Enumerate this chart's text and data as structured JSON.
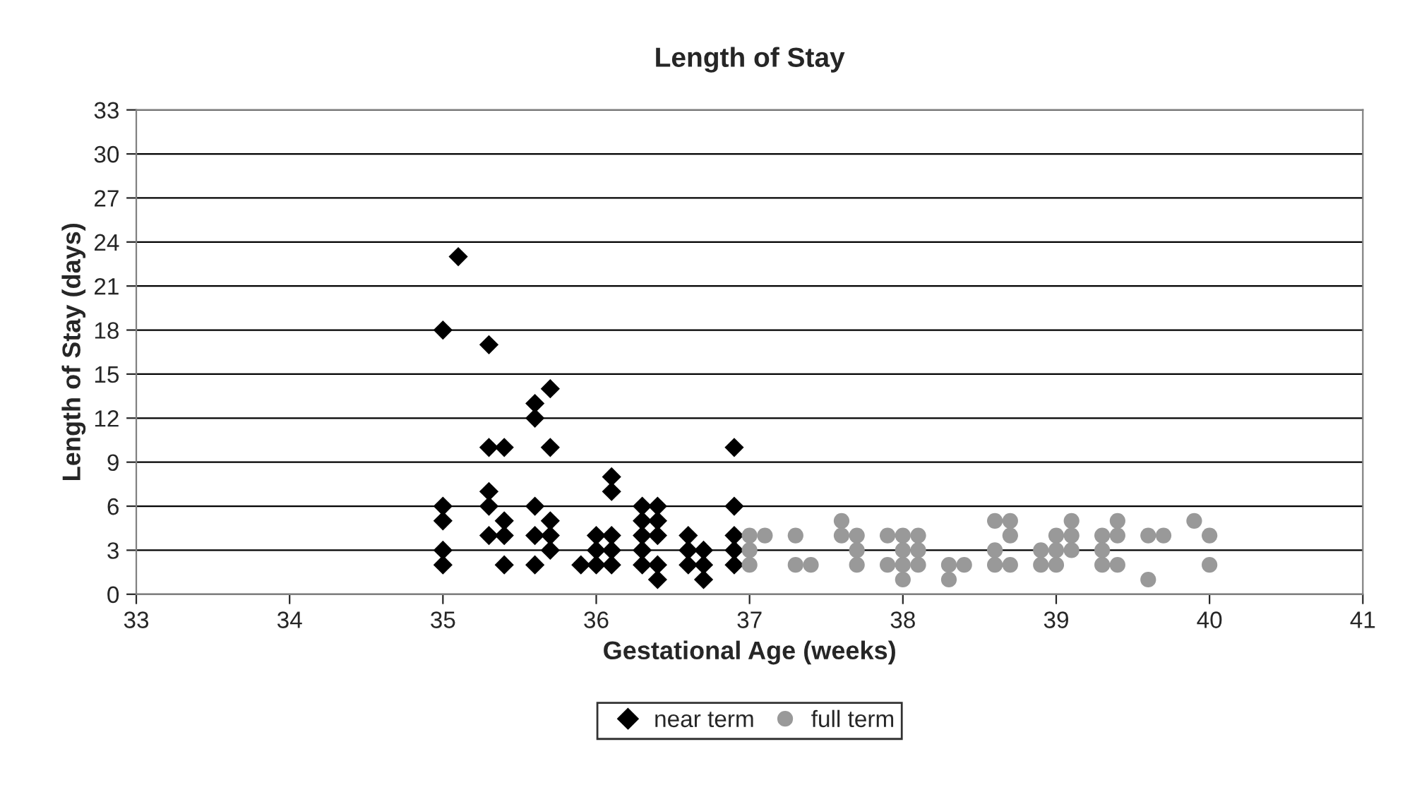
{
  "chart_data": {
    "type": "scatter",
    "title": "Length of Stay",
    "xlabel": "Gestational Age (weeks)",
    "ylabel": "Length of Stay (days)",
    "xlim": [
      33,
      41
    ],
    "xticks": [
      33,
      34,
      35,
      36,
      37,
      38,
      39,
      40,
      41
    ],
    "ylim": [
      0,
      33
    ],
    "yticks": [
      0,
      3,
      6,
      9,
      12,
      15,
      18,
      21,
      24,
      27,
      30,
      33
    ],
    "grid": "y",
    "legend": "bottom",
    "series": [
      {
        "name": "near term",
        "color": "#000000",
        "marker": "diamond",
        "x": [
          35.0,
          35.0,
          35.0,
          35.0,
          35.0,
          35.1,
          35.3,
          35.3,
          35.3,
          35.3,
          35.3,
          35.4,
          35.4,
          35.4,
          35.4,
          35.6,
          35.6,
          35.6,
          35.6,
          35.6,
          35.7,
          35.7,
          35.7,
          35.7,
          35.7,
          35.9,
          36.0,
          36.0,
          36.0,
          36.1,
          36.1,
          36.1,
          36.1,
          36.1,
          36.3,
          36.3,
          36.3,
          36.3,
          36.3,
          36.4,
          36.4,
          36.4,
          36.4,
          36.4,
          36.6,
          36.6,
          36.6,
          36.7,
          36.7,
          36.7,
          36.9,
          36.9,
          36.9,
          36.9,
          36.9
        ],
        "values": [
          18,
          6,
          5,
          3,
          2,
          23,
          17,
          10,
          7,
          6,
          4,
          10,
          5,
          4,
          2,
          13,
          12,
          6,
          4,
          2,
          14,
          10,
          5,
          4,
          3,
          2,
          4,
          3,
          2,
          8,
          7,
          4,
          3,
          2,
          6,
          5,
          4,
          3,
          2,
          6,
          5,
          4,
          2,
          1,
          4,
          3,
          2,
          3,
          2,
          1,
          10,
          6,
          4,
          3,
          2
        ]
      },
      {
        "name": "full term",
        "color": "#999999",
        "marker": "circle",
        "x": [
          37.0,
          37.0,
          37.0,
          37.1,
          37.3,
          37.3,
          37.4,
          37.6,
          37.6,
          37.7,
          37.7,
          37.7,
          37.9,
          37.9,
          38.0,
          38.0,
          38.0,
          38.0,
          38.1,
          38.1,
          38.1,
          38.3,
          38.3,
          38.4,
          38.6,
          38.6,
          38.6,
          38.7,
          38.7,
          38.7,
          38.9,
          38.9,
          39.0,
          39.0,
          39.0,
          39.1,
          39.1,
          39.1,
          39.3,
          39.3,
          39.3,
          39.4,
          39.4,
          39.4,
          39.6,
          39.6,
          39.7,
          39.9,
          40.0,
          40.0
        ],
        "values": [
          4,
          3,
          2,
          4,
          4,
          2,
          2,
          5,
          4,
          4,
          3,
          2,
          4,
          2,
          4,
          3,
          2,
          1,
          4,
          3,
          2,
          2,
          1,
          2,
          5,
          3,
          2,
          5,
          4,
          2,
          3,
          2,
          4,
          3,
          2,
          5,
          4,
          3,
          4,
          3,
          2,
          5,
          4,
          2,
          4,
          1,
          4,
          5,
          4,
          2
        ]
      }
    ]
  }
}
